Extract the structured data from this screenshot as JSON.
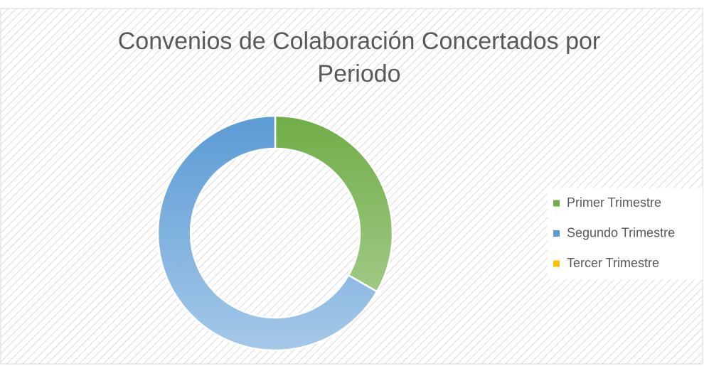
{
  "chart_data": {
    "type": "donut",
    "title": "Convenios de Colaboración Concertados por Periodo",
    "categories": [
      "Primer Trimestre",
      "Segundo Trimestre",
      "Tercer Trimestre"
    ],
    "values": [
      33.3,
      66.7,
      0
    ],
    "colors": [
      "#70ad47",
      "#5b9bd5",
      "#ffc000"
    ],
    "legend": "right"
  }
}
